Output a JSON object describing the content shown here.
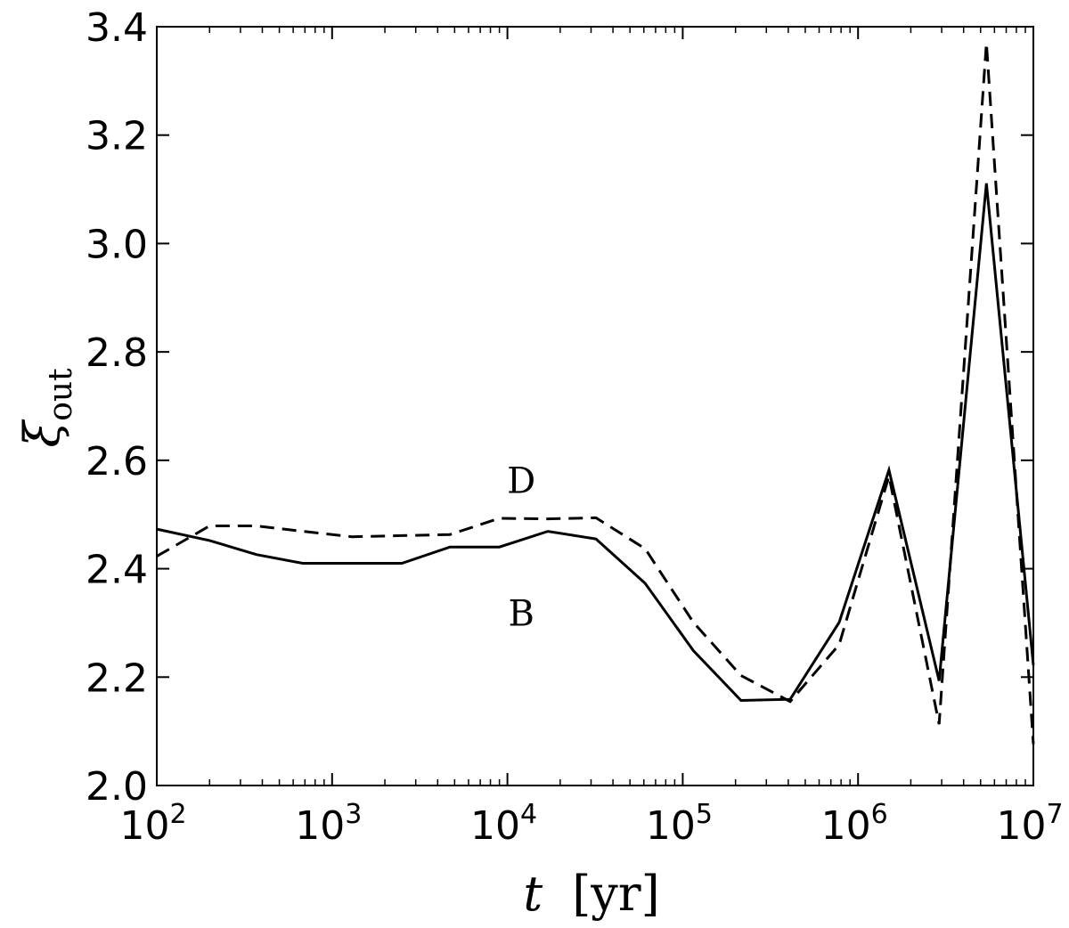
{
  "chart_data": {
    "type": "line",
    "xscale": "log",
    "xlim": [
      100,
      10000000
    ],
    "ylim": [
      2.0,
      3.4
    ],
    "xlabel": {
      "var": "t",
      "unit": "[yr]"
    },
    "ylabel": {
      "var": "ξ",
      "sub": "out"
    },
    "xticks": [
      {
        "value": 100,
        "base": "10",
        "exp": "2"
      },
      {
        "value": 1000,
        "base": "10",
        "exp": "3"
      },
      {
        "value": 10000,
        "base": "10",
        "exp": "4"
      },
      {
        "value": 100000,
        "base": "10",
        "exp": "5"
      },
      {
        "value": 1000000,
        "base": "10",
        "exp": "6"
      },
      {
        "value": 10000000,
        "base": "10",
        "exp": "7"
      }
    ],
    "yticks": [
      {
        "value": 2.0,
        "label": "2.0"
      },
      {
        "value": 2.2,
        "label": "2.2"
      },
      {
        "value": 2.4,
        "label": "2.4"
      },
      {
        "value": 2.6,
        "label": "2.6"
      },
      {
        "value": 2.8,
        "label": "2.8"
      },
      {
        "value": 3.0,
        "label": "3.0"
      },
      {
        "value": 3.2,
        "label": "3.2"
      },
      {
        "value": 3.4,
        "label": "3.4"
      }
    ],
    "grid": false,
    "series": [
      {
        "style": "solid",
        "color": "#000000",
        "points": [
          [
            100,
            2.473
          ],
          [
            200,
            2.452
          ],
          [
            370,
            2.426
          ],
          [
            680,
            2.41
          ],
          [
            1300,
            2.41
          ],
          [
            2500,
            2.41
          ],
          [
            4700,
            2.44
          ],
          [
            9000,
            2.44
          ],
          [
            17000,
            2.469
          ],
          [
            32000,
            2.455
          ],
          [
            61000,
            2.373
          ],
          [
            115000,
            2.249
          ],
          [
            215000,
            2.157
          ],
          [
            410000,
            2.159
          ],
          [
            780000,
            2.301
          ],
          [
            1500000,
            2.582
          ],
          [
            2900000,
            2.193
          ],
          [
            5400000,
            3.111
          ],
          [
            10000000,
            2.222
          ]
        ]
      },
      {
        "style": "dashed",
        "color": "#000000",
        "points": [
          [
            100,
            2.423
          ],
          [
            200,
            2.479
          ],
          [
            370,
            2.479
          ],
          [
            680,
            2.469
          ],
          [
            1300,
            2.459
          ],
          [
            2500,
            2.461
          ],
          [
            4700,
            2.463
          ],
          [
            9000,
            2.493
          ],
          [
            17000,
            2.492
          ],
          [
            32000,
            2.494
          ],
          [
            61000,
            2.437
          ],
          [
            115000,
            2.301
          ],
          [
            215000,
            2.203
          ],
          [
            410000,
            2.155
          ],
          [
            780000,
            2.26
          ],
          [
            1500000,
            2.571
          ],
          [
            2900000,
            2.113
          ],
          [
            5400000,
            3.37
          ],
          [
            10000000,
            2.076
          ]
        ]
      }
    ],
    "annotations": [
      {
        "text": "D",
        "x": 12000,
        "y": 2.563
      },
      {
        "text": "B",
        "x": 12000,
        "y": 2.318
      }
    ]
  }
}
